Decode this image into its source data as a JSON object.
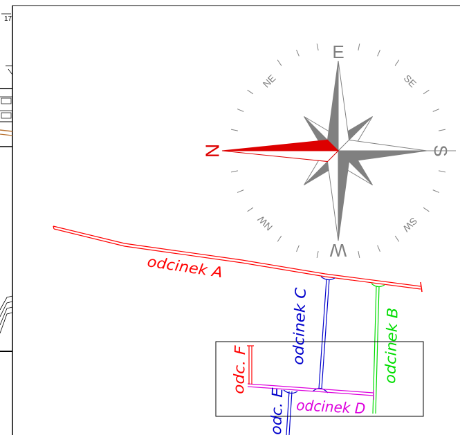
{
  "compass": {
    "n": "N",
    "e": "E",
    "s": "S",
    "w": "W",
    "ne": "NE",
    "se": "SE",
    "nw": "NW",
    "sw": "SW"
  },
  "segments": {
    "a": "odcinek A",
    "b": "odcinek B",
    "c": "odcinek C",
    "d": "odcinek D",
    "e": "odc. E",
    "f": "odc. F"
  },
  "sidebar": {
    "top_number": "17"
  },
  "colors": {
    "north_fill": "#dd0000",
    "rose_grey": "#808080",
    "segment_a": "#ff0000",
    "segment_b": "#00dd00",
    "segment_c": "#0000cc",
    "segment_d": "#dd00dd",
    "segment_e": "#0000cc",
    "segment_f": "#ff0000"
  }
}
